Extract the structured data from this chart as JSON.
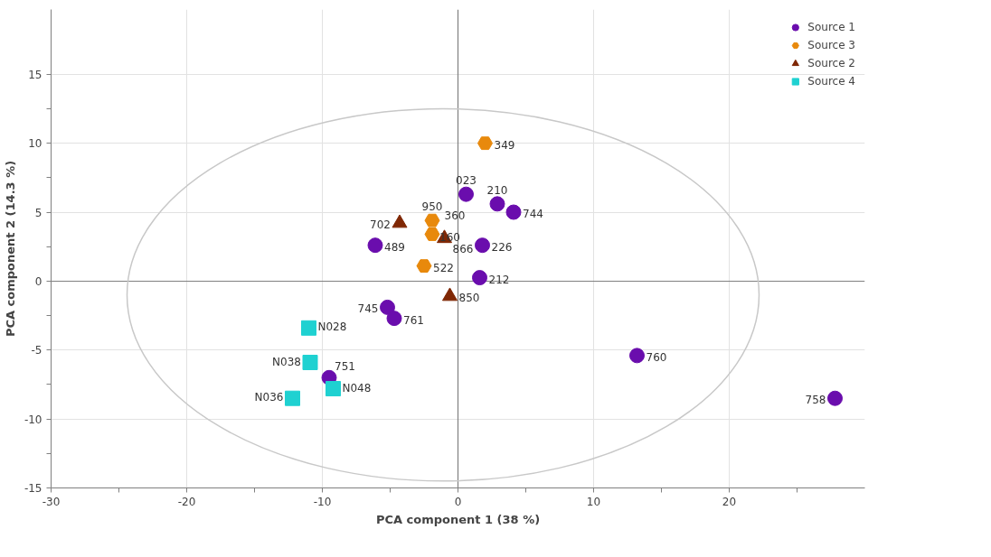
{
  "chart_data": {
    "type": "scatter",
    "xlabel": "PCA component 1 (38 %)",
    "ylabel": "PCA component 2 (14.3 %)",
    "xlim": [
      -30,
      30
    ],
    "ylim": [
      -15,
      19.7
    ],
    "xticks": [
      -30,
      {
        "value": -25,
        "label": null
      },
      -20,
      {
        "value": -15,
        "label": null
      },
      -10,
      {
        "value": -5,
        "label": null
      },
      0,
      {
        "value": 5,
        "label": null
      },
      10,
      {
        "value": 15,
        "label": null
      },
      20,
      {
        "value": 25,
        "label": null
      }
    ],
    "yticks": [
      -15,
      {
        "value": -12.5,
        "label": null
      },
      -10,
      {
        "value": -7.5,
        "label": null
      },
      -5,
      {
        "value": -2.5,
        "label": null
      },
      0,
      {
        "value": 2.5,
        "label": null
      },
      5,
      {
        "value": 7.5,
        "label": null
      },
      10,
      {
        "value": 12.5,
        "label": null
      },
      15
    ],
    "grid": true,
    "legend": "top right",
    "series": [
      {
        "name": "Source 1",
        "color": "#6a0dad",
        "marker": "circle",
        "x": [
          0.6,
          2.9,
          4.1,
          -6.1,
          1.8,
          1.6,
          -5.2,
          -4.7,
          -9.5,
          13.2,
          27.8
        ],
        "values": [
          6.3,
          5.6,
          5.0,
          2.6,
          2.6,
          0.25,
          -1.9,
          -2.7,
          -7.0,
          -5.4,
          -8.5
        ]
      },
      {
        "name": "Source 3",
        "color": "#e8890c",
        "x": [
          2.0,
          -1.9,
          null,
          -1.9,
          -2.5
        ],
        "values": [
          10.0,
          4.4,
          null,
          3.4,
          1.1
        ]
      },
      {
        "name": "Source 2",
        "color": "#7f2704",
        "marker": "triangle",
        "x": [
          -4.3,
          -1.0,
          -0.6
        ],
        "values": [
          4.2,
          3.1,
          -1.1
        ]
      },
      {
        "name": "Source 4",
        "color": "#1fd1d1",
        "marker": "square",
        "x": [
          -11.0,
          -10.9,
          -12.2,
          -9.2
        ],
        "values": [
          -3.4,
          -5.9,
          -8.5,
          -7.8
        ]
      }
    ],
    "annotations": [
      {
        "text": "023",
        "x": 0.6,
        "y": 6.3
      },
      {
        "text": "210",
        "x": 2.9,
        "y": 5.6
      },
      {
        "text": "744",
        "x": 4.1,
        "y": 5.0
      },
      {
        "text": "489",
        "x": -6.1,
        "y": 2.6
      },
      {
        "text": "226",
        "x": 1.8,
        "y": 2.6
      },
      {
        "text": "212",
        "x": 1.6,
        "y": 0.25
      },
      {
        "text": "745",
        "x": -5.2,
        "y": -1.9
      },
      {
        "text": "761",
        "x": -4.7,
        "y": -2.7
      },
      {
        "text": "751",
        "x": -9.5,
        "y": -7.0
      },
      {
        "text": "760",
        "x": 13.2,
        "y": -5.4
      },
      {
        "text": "758",
        "x": 27.8,
        "y": -8.5
      },
      {
        "text": "349",
        "x": 2.0,
        "y": 10.0
      },
      {
        "text": "950",
        "x": -1.9,
        "y": 4.4
      },
      {
        "text": "360",
        "x": -1.6,
        "y": 4.2
      },
      {
        "text": "160",
        "x": -1.9,
        "y": 3.4
      },
      {
        "text": "522",
        "x": -2.5,
        "y": 1.1
      },
      {
        "text": "702",
        "x": -4.3,
        "y": 4.2
      },
      {
        "text": "866",
        "x": -1.0,
        "y": 3.1
      },
      {
        "text": "850",
        "x": -0.6,
        "y": -1.1
      },
      {
        "text": "N028",
        "x": -11.0,
        "y": -3.4
      },
      {
        "text": "N038",
        "x": -10.9,
        "y": -5.9
      },
      {
        "text": "N036",
        "x": -12.2,
        "y": -8.5
      },
      {
        "text": "N048",
        "x": -9.2,
        "y": -7.8
      }
    ]
  }
}
